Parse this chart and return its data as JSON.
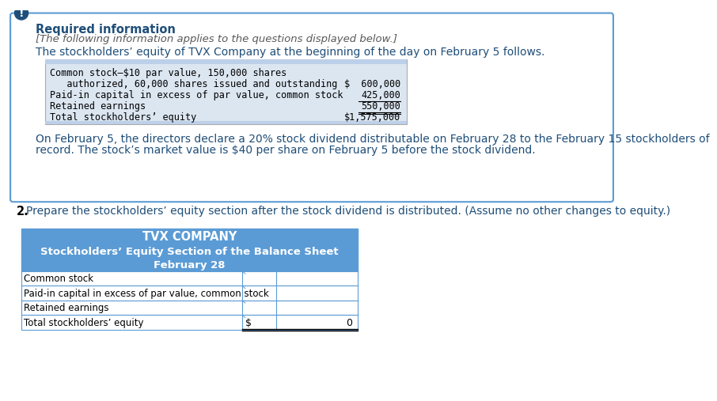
{
  "bg_color": "#ffffff",
  "outer_box_edge": "#5b9bd5",
  "outer_box_face": "#ffffff",
  "exclamation_color": "#1f4e79",
  "required_info_color": "#1f4e79",
  "italic_text_color": "#595959",
  "body_text_color": "#1f4e79",
  "question_num_color": "#000000",
  "prereq_table_bg": "#dce6f1",
  "prereq_table_header_bg": "#bdd0e9",
  "prereq_table_border": "#aaaaaa",
  "table_header_bg": "#5b9bd5",
  "table_header_text": "#ffffff",
  "table_row_bg": "#ffffff",
  "table_border_color": "#5b9bd5",
  "required_info_label": "Required information",
  "italic_line": "[The following information applies to the questions displayed below.]",
  "body_line1": "The stockholders’ equity of TVX Company at the beginning of the day on February 5 follows.",
  "prereq_table_lines": [
    [
      "Common stock–$10 par value, 150,000 shares",
      ""
    ],
    [
      "   authorized, 60,000 shares issued and outstanding",
      "$  600,000"
    ],
    [
      "Paid-in capital in excess of par value, common stock",
      "425,000"
    ],
    [
      "Retained earnings",
      "550,000"
    ],
    [
      "Total stockholders’ equity",
      "$1,575,000"
    ]
  ],
  "on_feb_line1": "On February 5, the directors declare a 20% stock dividend distributable on February 28 to the February 15 stockholders of",
  "on_feb_line2": "record. The stock’s market value is $40 per share on February 5 before the stock dividend.",
  "question_label": "2.",
  "question_text": "Prepare the stockholders’ equity section after the stock dividend is distributed. (Assume no other changes to equity.)",
  "table_company": "TVX COMPANY",
  "table_subtitle": "Stockholders’ Equity Section of the Balance Sheet",
  "table_date": "February 28",
  "table_rows": [
    "Common stock",
    "Paid-in capital in excess of par value, common stock",
    "Retained earnings",
    "Total stockholders’ equity"
  ],
  "table_col2_label": "$",
  "table_col3_value": "0"
}
